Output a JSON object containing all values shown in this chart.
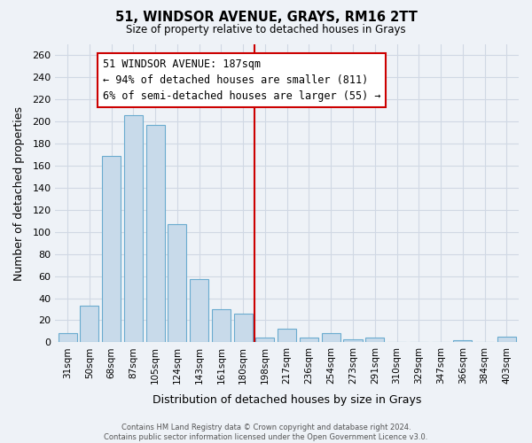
{
  "title": "51, WINDSOR AVENUE, GRAYS, RM16 2TT",
  "subtitle": "Size of property relative to detached houses in Grays",
  "xlabel": "Distribution of detached houses by size in Grays",
  "ylabel": "Number of detached properties",
  "categories": [
    "31sqm",
    "50sqm",
    "68sqm",
    "87sqm",
    "105sqm",
    "124sqm",
    "143sqm",
    "161sqm",
    "180sqm",
    "198sqm",
    "217sqm",
    "236sqm",
    "254sqm",
    "273sqm",
    "291sqm",
    "310sqm",
    "329sqm",
    "347sqm",
    "366sqm",
    "384sqm",
    "403sqm"
  ],
  "values": [
    8,
    33,
    169,
    206,
    197,
    107,
    57,
    30,
    26,
    4,
    12,
    4,
    8,
    3,
    4,
    0,
    0,
    0,
    2,
    0,
    5
  ],
  "bar_color": "#c8daea",
  "bar_edge_color": "#6aabcf",
  "vline_position": 8.5,
  "vline_color": "#cc0000",
  "ylim": [
    0,
    270
  ],
  "yticks": [
    0,
    20,
    40,
    60,
    80,
    100,
    120,
    140,
    160,
    180,
    200,
    220,
    240,
    260
  ],
  "annotation_title": "51 WINDSOR AVENUE: 187sqm",
  "annotation_line1": "← 94% of detached houses are smaller (811)",
  "annotation_line2": "6% of semi-detached houses are larger (55) →",
  "footer1": "Contains HM Land Registry data © Crown copyright and database right 2024.",
  "footer2": "Contains public sector information licensed under the Open Government Licence v3.0.",
  "bg_color": "#eef2f7",
  "plot_bg_color": "#eef2f7",
  "grid_color": "#d0d8e4",
  "fig_width": 6.0,
  "fig_height": 5.0
}
